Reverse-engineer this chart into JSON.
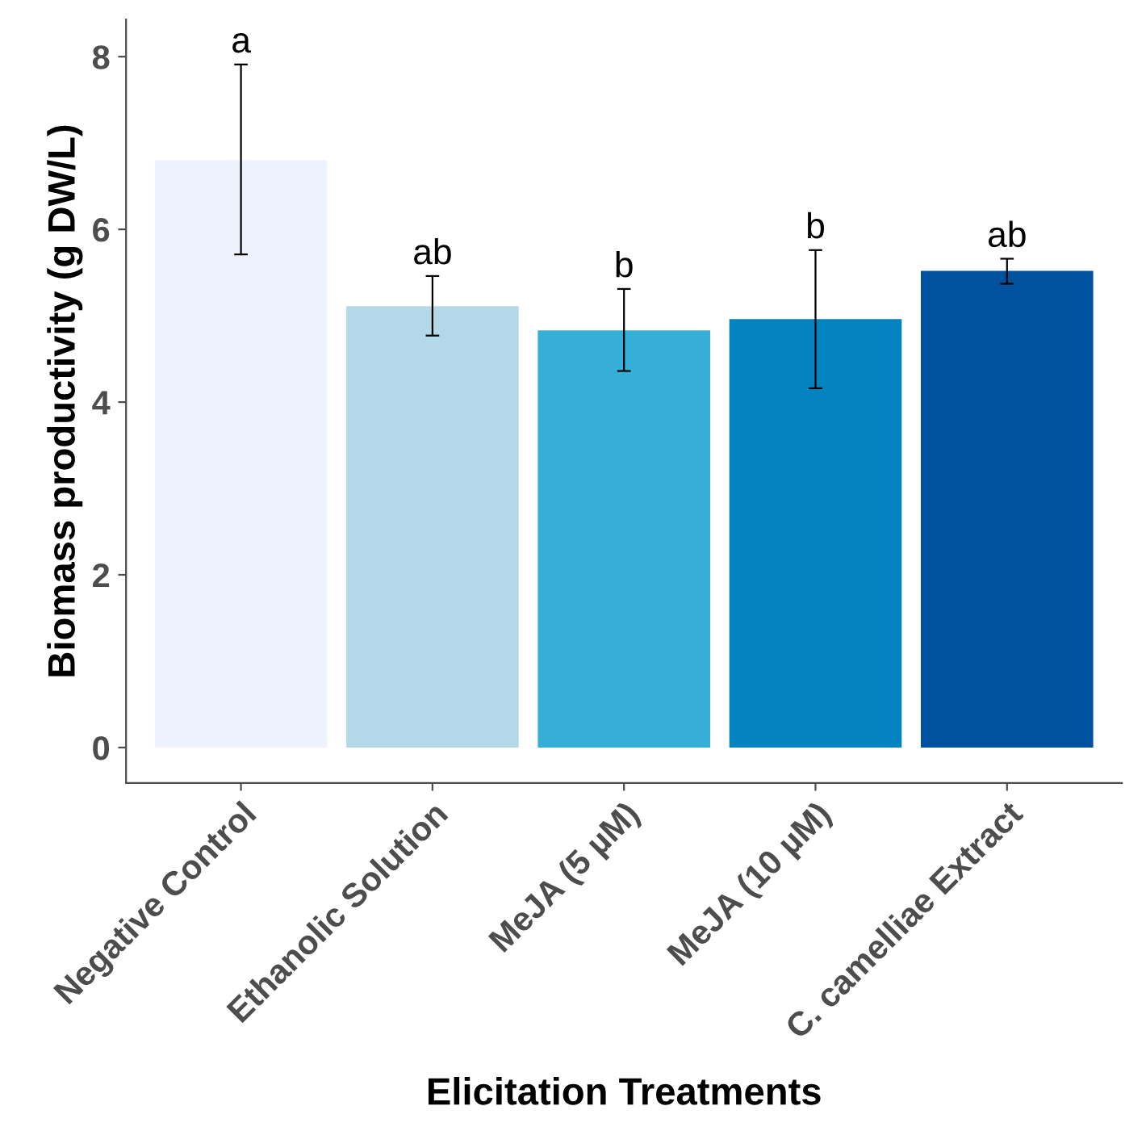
{
  "chart_data": {
    "type": "bar",
    "xlabel": "Elicitation Treatments",
    "ylabel": "Biomass productivity (g DW/L)",
    "categories": [
      "Negative Control",
      "Ethanolic Solution",
      "MeJA (5 µM)",
      "MeJA (10 µM)",
      "C. camelliae Extract"
    ],
    "values": [
      6.8,
      5.11,
      4.83,
      4.96,
      5.52
    ],
    "colors": [
      "#eef2fd",
      "#b3d8e8",
      "#36afd8",
      "#0384c1",
      "#01529e"
    ],
    "errors": [
      [
        5.71,
        7.91
      ],
      [
        4.77,
        5.46
      ],
      [
        4.36,
        5.31
      ],
      [
        4.16,
        5.76
      ],
      [
        5.37,
        5.66
      ]
    ],
    "annotations": [
      "a",
      "ab",
      "b",
      "b",
      "ab"
    ],
    "ylim": [
      -0.41,
      8.43
    ],
    "yticks": [
      0,
      2,
      4,
      6,
      8
    ],
    "grid": false,
    "legend": false
  }
}
